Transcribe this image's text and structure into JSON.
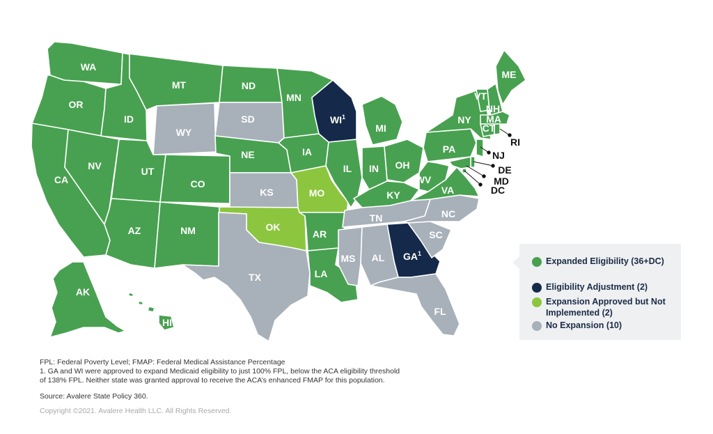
{
  "colors": {
    "expanded": "#48a150",
    "adjustment": "#15294a",
    "approved_not_implemented": "#8cc63f",
    "no_expansion": "#a8b0ba",
    "legend_bg": "#eef0f2"
  },
  "states": [
    {
      "abbr": "WA",
      "status": "expanded"
    },
    {
      "abbr": "OR",
      "status": "expanded"
    },
    {
      "abbr": "CA",
      "status": "expanded"
    },
    {
      "abbr": "ID",
      "status": "expanded"
    },
    {
      "abbr": "NV",
      "status": "expanded"
    },
    {
      "abbr": "MT",
      "status": "expanded"
    },
    {
      "abbr": "WY",
      "status": "no_expansion"
    },
    {
      "abbr": "UT",
      "status": "expanded"
    },
    {
      "abbr": "CO",
      "status": "expanded"
    },
    {
      "abbr": "AZ",
      "status": "expanded"
    },
    {
      "abbr": "NM",
      "status": "expanded"
    },
    {
      "abbr": "ND",
      "status": "expanded"
    },
    {
      "abbr": "SD",
      "status": "no_expansion"
    },
    {
      "abbr": "NE",
      "status": "expanded"
    },
    {
      "abbr": "KS",
      "status": "no_expansion"
    },
    {
      "abbr": "OK",
      "status": "approved_not_implemented"
    },
    {
      "abbr": "TX",
      "status": "no_expansion"
    },
    {
      "abbr": "MN",
      "status": "expanded"
    },
    {
      "abbr": "IA",
      "status": "expanded"
    },
    {
      "abbr": "MO",
      "status": "approved_not_implemented"
    },
    {
      "abbr": "AR",
      "status": "expanded"
    },
    {
      "abbr": "LA",
      "status": "expanded"
    },
    {
      "abbr": "WI",
      "status": "adjustment",
      "sup": "1"
    },
    {
      "abbr": "IL",
      "status": "expanded"
    },
    {
      "abbr": "MI",
      "status": "expanded"
    },
    {
      "abbr": "IN",
      "status": "expanded"
    },
    {
      "abbr": "OH",
      "status": "expanded"
    },
    {
      "abbr": "KY",
      "status": "expanded"
    },
    {
      "abbr": "TN",
      "status": "no_expansion"
    },
    {
      "abbr": "MS",
      "status": "no_expansion"
    },
    {
      "abbr": "AL",
      "status": "no_expansion"
    },
    {
      "abbr": "GA",
      "status": "adjustment",
      "sup": "1"
    },
    {
      "abbr": "FL",
      "status": "no_expansion"
    },
    {
      "abbr": "SC",
      "status": "no_expansion"
    },
    {
      "abbr": "NC",
      "status": "no_expansion"
    },
    {
      "abbr": "VA",
      "status": "expanded"
    },
    {
      "abbr": "WV",
      "status": "expanded"
    },
    {
      "abbr": "PA",
      "status": "expanded"
    },
    {
      "abbr": "NY",
      "status": "expanded"
    },
    {
      "abbr": "VT",
      "status": "expanded"
    },
    {
      "abbr": "NH",
      "status": "expanded"
    },
    {
      "abbr": "ME",
      "status": "expanded"
    },
    {
      "abbr": "MA",
      "status": "expanded"
    },
    {
      "abbr": "CT",
      "status": "expanded"
    },
    {
      "abbr": "RI",
      "status": "expanded"
    },
    {
      "abbr": "NJ",
      "status": "expanded"
    },
    {
      "abbr": "DE",
      "status": "expanded"
    },
    {
      "abbr": "MD",
      "status": "expanded"
    },
    {
      "abbr": "DC",
      "status": "expanded"
    },
    {
      "abbr": "AK",
      "status": "expanded"
    },
    {
      "abbr": "HI",
      "status": "expanded"
    }
  ],
  "legend": [
    {
      "status": "expanded",
      "label": "Expanded Eligibility (36+DC)"
    },
    {
      "status": "adjustment",
      "label": "Eligibility Adjustment (2)"
    },
    {
      "status": "approved_not_implemented",
      "label": "Expansion Approved but Not Implemented (2)"
    },
    {
      "status": "no_expansion",
      "label": "No Expansion (10)"
    }
  ],
  "notes": {
    "abbreviations": "FPL: Federal Poverty Level; FMAP: Federal Medical Assistance Percentage",
    "footnote_1": "1. GA and WI were approved to expand Medicaid eligibility to just 100% FPL, below the ACA eligibility threshold",
    "footnote_2": "of 138% FPL. Neither state was granted approval to receive the ACA’s enhanced FMAP for this population.",
    "source": "Source: Avalere State Policy 360.",
    "copyright": "Copyright ©2021. Avalere Health LLC. All Rights Reserved."
  }
}
